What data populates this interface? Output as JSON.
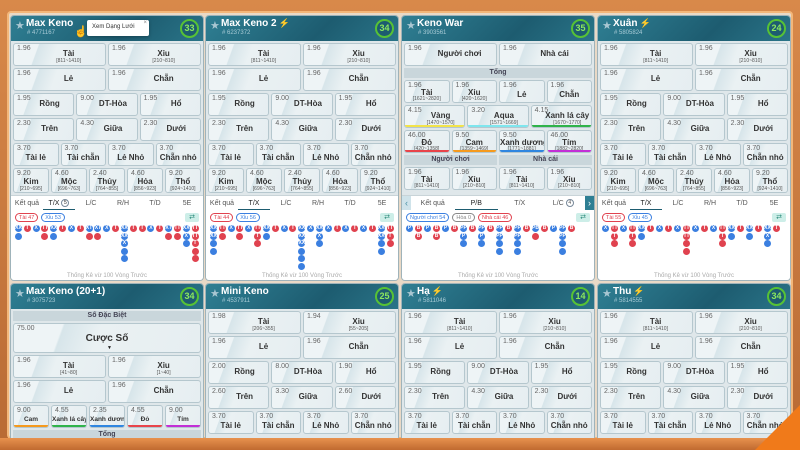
{
  "colors": {
    "T": "#e0424f",
    "X": "#3b7fe0",
    "P": "#3b7fe0",
    "B": "#e0424f",
    "H": "#888888"
  },
  "tooltip": {
    "text": "Xem Dạng Lưới",
    "close": "×"
  },
  "footer_text": "Thống Kê vừ 100 Vòng Trước",
  "panels": [
    {
      "title": "Max Keno",
      "bolt": false,
      "id": "# 4771167",
      "timer": "33",
      "rows": [
        [
          {
            "odd": "1.96",
            "label": "Tài",
            "range": "[811~1410]"
          },
          {
            "odd": "1.96",
            "label": "Xỉu",
            "range": "[210~810]"
          }
        ],
        [
          {
            "odd": "1.96",
            "label": "Lẻ"
          },
          {
            "odd": "1.96",
            "label": "Chẵn"
          }
        ],
        [
          {
            "odd": "1.95",
            "label": "Rồng"
          },
          {
            "odd": "9.00",
            "label": "DT-Hòa"
          },
          {
            "odd": "1.95",
            "label": "Hổ"
          }
        ],
        [
          {
            "odd": "2.30",
            "label": "Trên"
          },
          {
            "odd": "4.30",
            "label": "Giữa"
          },
          {
            "odd": "2.30",
            "label": "Dưới"
          }
        ],
        [
          {
            "odd": "3.70",
            "label": "Tài lẻ"
          },
          {
            "odd": "3.70",
            "label": "Tài chẵn"
          },
          {
            "odd": "3.70",
            "label": "Lẻ Nhỏ"
          },
          {
            "odd": "3.70",
            "label": "Chẵn nhỏ"
          }
        ],
        [
          {
            "odd": "9.20",
            "label": "Kim",
            "range": "[210~695]",
            "el": true
          },
          {
            "odd": "4.60",
            "label": "Mộc",
            "range": "[696~763]",
            "el": true
          },
          {
            "odd": "2.40",
            "label": "Thủy",
            "range": "[764~855]",
            "el": true
          },
          {
            "odd": "4.60",
            "label": "Hỏa",
            "range": "[856~923]",
            "el": true
          },
          {
            "odd": "9.20",
            "label": "Thổ",
            "range": "[924~1410]",
            "el": true
          }
        ]
      ],
      "tabs": [
        {
          "label": "Kết quả"
        },
        {
          "label": "T/X",
          "active": true,
          "badge": "5"
        },
        {
          "label": "L/C"
        },
        {
          "label": "R/H"
        },
        {
          "label": "T/D"
        },
        {
          "label": "5E"
        }
      ],
      "stats": [
        {
          "label": "Tài 47",
          "type": "T"
        },
        {
          "label": "Xỉu 53",
          "type": "X"
        }
      ],
      "beads": [
        "XX",
        "T",
        "X",
        "TT",
        "XX",
        "T",
        "X",
        "T",
        "XT",
        "XT",
        "X",
        "T",
        "XXXXX",
        "T",
        "T",
        "X",
        "T",
        "XT",
        "TT",
        "XXX",
        "TTTTT"
      ]
    },
    {
      "title": "Max Keno 2",
      "bolt": true,
      "id": "# 6237372",
      "timer": "34",
      "rows": "std",
      "tabs": [
        {
          "label": "Kết quả"
        },
        {
          "label": "T/X",
          "active": true
        },
        {
          "label": "L/C"
        },
        {
          "label": "R/H"
        },
        {
          "label": "T/D"
        },
        {
          "label": "5E"
        }
      ],
      "stats": [
        {
          "label": "Tài 44",
          "type": "T"
        },
        {
          "label": "Xỉu 56",
          "type": "X"
        }
      ],
      "beads": [
        "XXXX",
        "TT",
        "X",
        "TT",
        "X",
        "TTT",
        "XX",
        "T",
        "X",
        "T",
        "XXXXXX",
        "X",
        "XXX",
        "X",
        "T",
        "X",
        "T",
        "X",
        "T",
        "XXXX",
        "TTT"
      ]
    },
    {
      "title": "Keno War",
      "bolt": false,
      "id": "# 3903561",
      "timer": "35",
      "rows": [
        [
          {
            "odd": "1.96",
            "label": "Người chơi"
          },
          {
            "odd": "1.96",
            "label": "Nhà cái"
          }
        ],
        {
          "section": [
            "Tổng"
          ]
        },
        [
          {
            "odd": "1.96",
            "label": "Tài",
            "range": "[1621~2820]"
          },
          {
            "odd": "1.96",
            "label": "Xỉu",
            "range": "[420~1620]"
          },
          {
            "odd": "1.96",
            "label": "Lẻ"
          },
          {
            "odd": "1.96",
            "label": "Chẵn"
          }
        ],
        [
          {
            "odd": "4.15",
            "label": "Vàng",
            "range": "[1470~1570]",
            "color": "#f2e34a"
          },
          {
            "odd": "3.20",
            "label": "Aqua",
            "range": "[1571~1669]",
            "color": "#7fe6ee"
          },
          {
            "odd": "4.15",
            "label": "Xanh lá cây",
            "range": "[1670~1770]",
            "color": "#2fb34a"
          }
        ],
        [
          {
            "odd": "46.00",
            "label": "Đỏ",
            "range": "[420~1358]",
            "color": "#e8444a"
          },
          {
            "odd": "9.50",
            "label": "Cam",
            "range": "[1359~1469]",
            "color": "#f59a1e"
          },
          {
            "odd": "9.50",
            "label": "Xanh dương",
            "range": "[1771~1881]",
            "color": "#2f86e0"
          },
          {
            "odd": "46.00",
            "label": "Tím",
            "range": "[1882~2820]",
            "color": "#c22fd6"
          }
        ],
        {
          "section": [
            "Người chơi",
            "Nhà cái"
          ]
        },
        [
          {
            "odd": "1.96",
            "label": "Tài",
            "range": "[811~1410]"
          },
          {
            "odd": "1.96",
            "label": "Xỉu",
            "range": "[210~810]"
          },
          {
            "odd": "1.96",
            "label": "Tài",
            "range": "[811~1410]"
          },
          {
            "odd": "1.96",
            "label": "Xỉu",
            "range": "[210~810]"
          }
        ]
      ],
      "arrows": true,
      "tabs": [
        {
          "label": "Kết quả"
        },
        {
          "label": "P/B",
          "active": true
        },
        {
          "label": "T/X"
        },
        {
          "label": "L/C",
          "badge": "4"
        }
      ],
      "stats": [
        {
          "label": "Người chơi 54",
          "type": "P"
        },
        {
          "label": "Hòa 0",
          "type": "H"
        },
        {
          "label": "Nhà cái 46",
          "type": "B"
        }
      ],
      "beads": [
        "P",
        "BB",
        "P",
        "BB",
        "P",
        "B",
        "PPP",
        "B",
        "PPP",
        "B",
        "PPPP",
        "B",
        "PPPP",
        "B",
        "PB",
        "B",
        "P",
        "PPPP",
        "B"
      ]
    },
    {
      "title": "Xuân",
      "bolt": true,
      "id": "# 5805824",
      "timer": "24",
      "rows": "std",
      "tabs": [
        {
          "label": "Kết quả"
        },
        {
          "label": "T/X",
          "active": true
        },
        {
          "label": "L/C"
        },
        {
          "label": "R/H"
        },
        {
          "label": "T/D"
        },
        {
          "label": "5E"
        }
      ],
      "stats": [
        {
          "label": "Tài 55",
          "type": "T"
        },
        {
          "label": "Xỉu 45",
          "type": "X"
        }
      ],
      "beads": [
        "X",
        "TTT",
        "X",
        "TTT",
        "XX",
        "T",
        "X",
        "T",
        "X",
        "TTTT",
        "X",
        "T",
        "X",
        "TTT",
        "XX",
        "T",
        "XX",
        "T",
        "XXX",
        "T"
      ]
    },
    {
      "title": "Max Keno (20+1)",
      "bolt": false,
      "id": "# 3075723",
      "timer": "34",
      "rows": [
        {
          "section": [
            "Số Đặc Biệt"
          ]
        },
        [
          {
            "odd": "75.00",
            "label": "Cược Số",
            "big": true
          }
        ],
        [
          {
            "odd": "1.96",
            "label": "Tài",
            "range": "[41~80]"
          },
          {
            "odd": "1.96",
            "label": "Xỉu",
            "range": "[1~40]"
          }
        ],
        [
          {
            "odd": "1.96",
            "label": "Lẻ"
          },
          {
            "odd": "1.96",
            "label": "Chẵn"
          }
        ],
        [
          {
            "odd": "9.00",
            "label": "Cam",
            "color": "#f59a1e",
            "small": true
          },
          {
            "odd": "4.55",
            "label": "Xanh lá cây",
            "color": "#2fb34a",
            "small": true
          },
          {
            "odd": "2.35",
            "label": "Xanh dương",
            "color": "#2f86e0",
            "small": true
          },
          {
            "odd": "4.55",
            "label": "Đỏ",
            "color": "#e8444a",
            "small": true
          },
          {
            "odd": "9.00",
            "label": "Tím",
            "color": "#c22fd6",
            "small": true
          }
        ],
        {
          "section": [
            "Tổng"
          ]
        }
      ]
    },
    {
      "title": "Mini Keno",
      "bolt": false,
      "id": "# 4537911",
      "timer": "25",
      "rows": [
        [
          {
            "odd": "1.98",
            "label": "Tài",
            "range": "[206~355]"
          },
          {
            "odd": "1.94",
            "label": "Xỉu",
            "range": "[55~205]"
          }
        ],
        [
          {
            "odd": "1.96",
            "label": "Lẻ"
          },
          {
            "odd": "1.96",
            "label": "Chẵn"
          }
        ],
        [
          {
            "odd": "2.00",
            "label": "Rồng"
          },
          {
            "odd": "8.00",
            "label": "DT-Hòa"
          },
          {
            "odd": "1.90",
            "label": "Hổ"
          }
        ],
        [
          {
            "odd": "2.60",
            "label": "Trên"
          },
          {
            "odd": "3.30",
            "label": "Giữa"
          },
          {
            "odd": "2.60",
            "label": "Dưới"
          }
        ],
        [
          {
            "odd": "3.70",
            "label": "Tài lẻ"
          },
          {
            "odd": "3.70",
            "label": "Tài chẵn"
          },
          {
            "odd": "3.70",
            "label": "Lẻ Nhỏ"
          },
          {
            "odd": "3.70",
            "label": "Chẵn nhỏ"
          }
        ]
      ]
    },
    {
      "title": "Hạ",
      "bolt": true,
      "id": "# 5811046",
      "timer": "14",
      "rows": "std5"
    },
    {
      "title": "Thu",
      "bolt": true,
      "id": "# 5814555",
      "timer": "34",
      "rows": "std5"
    }
  ]
}
